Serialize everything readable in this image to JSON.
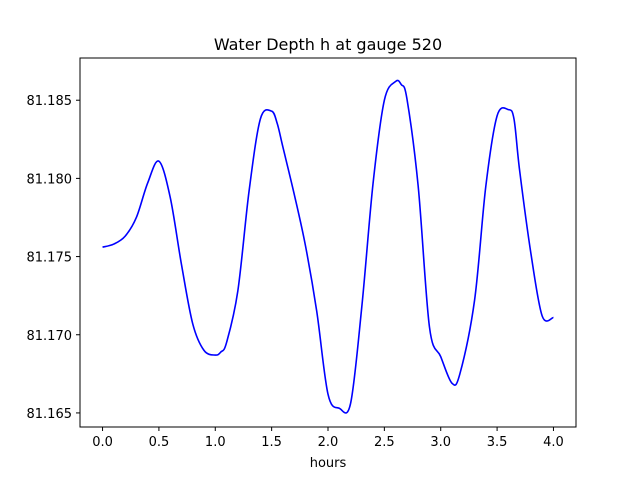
{
  "chart_data": {
    "type": "line",
    "title": "Water Depth h at gauge 520",
    "xlabel": "hours",
    "ylabel": "",
    "xlim": [
      -0.2,
      4.2
    ],
    "ylim": [
      81.1641,
      81.1877
    ],
    "grid": false,
    "x_ticks": [
      0.0,
      0.5,
      1.0,
      1.5,
      2.0,
      2.5,
      3.0,
      3.5,
      4.0
    ],
    "x_tick_labels": [
      "0.0",
      "0.5",
      "1.0",
      "1.5",
      "2.0",
      "2.5",
      "3.0",
      "3.5",
      "4.0"
    ],
    "y_ticks": [
      81.165,
      81.17,
      81.175,
      81.18,
      81.185
    ],
    "y_tick_labels": [
      "81.165",
      "81.170",
      "81.175",
      "81.180",
      "81.185"
    ],
    "series": [
      {
        "color": "#0000ff",
        "x": [
          0.0,
          0.1,
          0.2,
          0.3,
          0.4,
          0.5,
          0.6,
          0.7,
          0.8,
          0.9,
          1.0,
          1.05,
          1.1,
          1.2,
          1.3,
          1.4,
          1.5,
          1.55,
          1.6,
          1.7,
          1.8,
          1.9,
          2.0,
          2.1,
          2.2,
          2.3,
          2.4,
          2.5,
          2.6,
          2.65,
          2.7,
          2.8,
          2.9,
          3.0,
          3.1,
          3.17,
          3.3,
          3.4,
          3.5,
          3.6,
          3.65,
          3.7,
          3.8,
          3.9,
          4.0
        ],
        "y": [
          81.1756,
          81.1758,
          81.1763,
          81.1775,
          81.1797,
          81.1811,
          81.1788,
          81.1745,
          81.1707,
          81.169,
          81.1687,
          81.1689,
          81.1695,
          81.1728,
          81.1792,
          81.1838,
          81.1843,
          81.1835,
          81.182,
          81.179,
          81.1757,
          81.1715,
          81.1662,
          81.1653,
          81.1656,
          81.1718,
          81.1797,
          81.185,
          81.1862,
          81.186,
          81.1851,
          81.1795,
          81.1705,
          81.1686,
          81.1669,
          81.1675,
          81.1722,
          81.1795,
          81.184,
          81.1844,
          81.1838,
          81.1805,
          81.1752,
          81.1712,
          81.1711
        ]
      }
    ]
  }
}
